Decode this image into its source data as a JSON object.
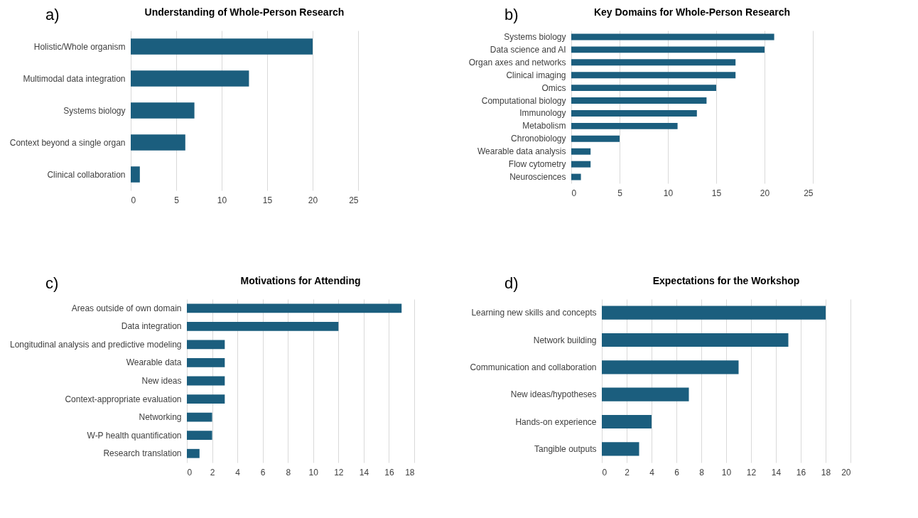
{
  "chart_data": [
    {
      "type": "bar",
      "orientation": "horizontal",
      "title": "Understanding of Whole-Person Research",
      "annotations": [
        "a)"
      ],
      "categories": [
        "Holistic/Whole organism",
        "Multimodal data integration",
        "Systems biology",
        "Context beyond a single organ",
        "Clinical collaboration"
      ],
      "values": [
        20,
        13,
        7,
        6,
        1
      ],
      "color": "#1b5e7e",
      "xlim": [
        0,
        25
      ],
      "xticks": [
        0,
        5,
        10,
        15,
        20,
        25
      ],
      "grid": "x"
    },
    {
      "type": "bar",
      "orientation": "horizontal",
      "title": "Key Domains for Whole-Person Research",
      "annotations": [
        "b)"
      ],
      "categories": [
        "Systems biology",
        "Data science and AI",
        "Organ axes and networks",
        "Clinical imaging",
        "Omics",
        "Computational biology",
        "Immunology",
        "Metabolism",
        "Chronobiology",
        "Wearable data analysis",
        "Flow cytometry",
        "Neurosciences"
      ],
      "values": [
        21,
        20,
        17,
        17,
        15,
        14,
        13,
        11,
        5,
        2,
        2,
        1
      ],
      "color": "#1b5e7e",
      "xlim": [
        0,
        25
      ],
      "xticks": [
        0,
        5,
        10,
        15,
        20,
        25
      ],
      "grid": "x"
    },
    {
      "type": "bar",
      "orientation": "horizontal",
      "title": "Motivations for Attending",
      "annotations": [
        "c)"
      ],
      "categories": [
        "Areas outside of own domain",
        "Data integration",
        "Longitudinal analysis and predictive modeling",
        "Wearable data",
        "New ideas",
        "Context-appropriate evaluation",
        "Networking",
        "W-P health quantification",
        "Research translation"
      ],
      "values": [
        17,
        12,
        3,
        3,
        3,
        3,
        2,
        2,
        1
      ],
      "color": "#1b5e7e",
      "xlim": [
        0,
        18
      ],
      "xticks": [
        0,
        2,
        4,
        6,
        8,
        10,
        12,
        14,
        16,
        18
      ],
      "grid": "x"
    },
    {
      "type": "bar",
      "orientation": "horizontal",
      "title": "Expectations for the Workshop",
      "annotations": [
        "d)"
      ],
      "categories": [
        "Learning new skills and  concepts",
        "Network building",
        "Communication and collaboration",
        "New ideas/hypotheses",
        "Hands-on experience",
        "Tangible outputs"
      ],
      "values": [
        18,
        15,
        11,
        7,
        4,
        3
      ],
      "color": "#1b5e7e",
      "xlim": [
        0,
        20
      ],
      "xticks": [
        0,
        2,
        4,
        6,
        8,
        10,
        12,
        14,
        16,
        18,
        20
      ],
      "grid": "x"
    }
  ]
}
